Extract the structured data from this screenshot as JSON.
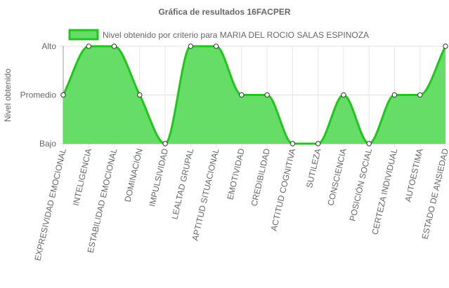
{
  "chart_data": {
    "type": "area",
    "title": "Gráfica de resultados 16FACPER",
    "ylabel": "Nivel obtenido",
    "xlabel": "",
    "y_levels": [
      "Bajo",
      "Promedio",
      "Alto"
    ],
    "ylim": [
      0,
      2
    ],
    "legend": {
      "position": "top"
    },
    "grid": true,
    "categories": [
      "EXPRESIVIDAD EMOCIONAL",
      "INTELIGENCIA",
      "ESTABILIDAD EMOCIONAL",
      "DOMINACIÓN",
      "IMPULSIVIDAD",
      "LEALTAD GRUPAL",
      "APTITUD SITUACIONAL",
      "EMOTIVIDAD",
      "CREDIBILIDAD",
      "ACTITUD COGNITIVA",
      "SUTILEZA",
      "CONSCIENCIA",
      "POSICIÓN SOCIAL",
      "CERTEZA INDIVIDUAL",
      "AUTOESTIMA",
      "ESTADO DE ANSIEDAD"
    ],
    "series": [
      {
        "name": "Nivel obtenido por criterio para MARIA DEL ROCIO SALAS ESPINOZA",
        "values": [
          1,
          2,
          2,
          1,
          0,
          2,
          2,
          1,
          1,
          0,
          0,
          1,
          0,
          1,
          1,
          2
        ],
        "line_color": "#22c41e",
        "fill_color": "#66dd66"
      }
    ]
  }
}
